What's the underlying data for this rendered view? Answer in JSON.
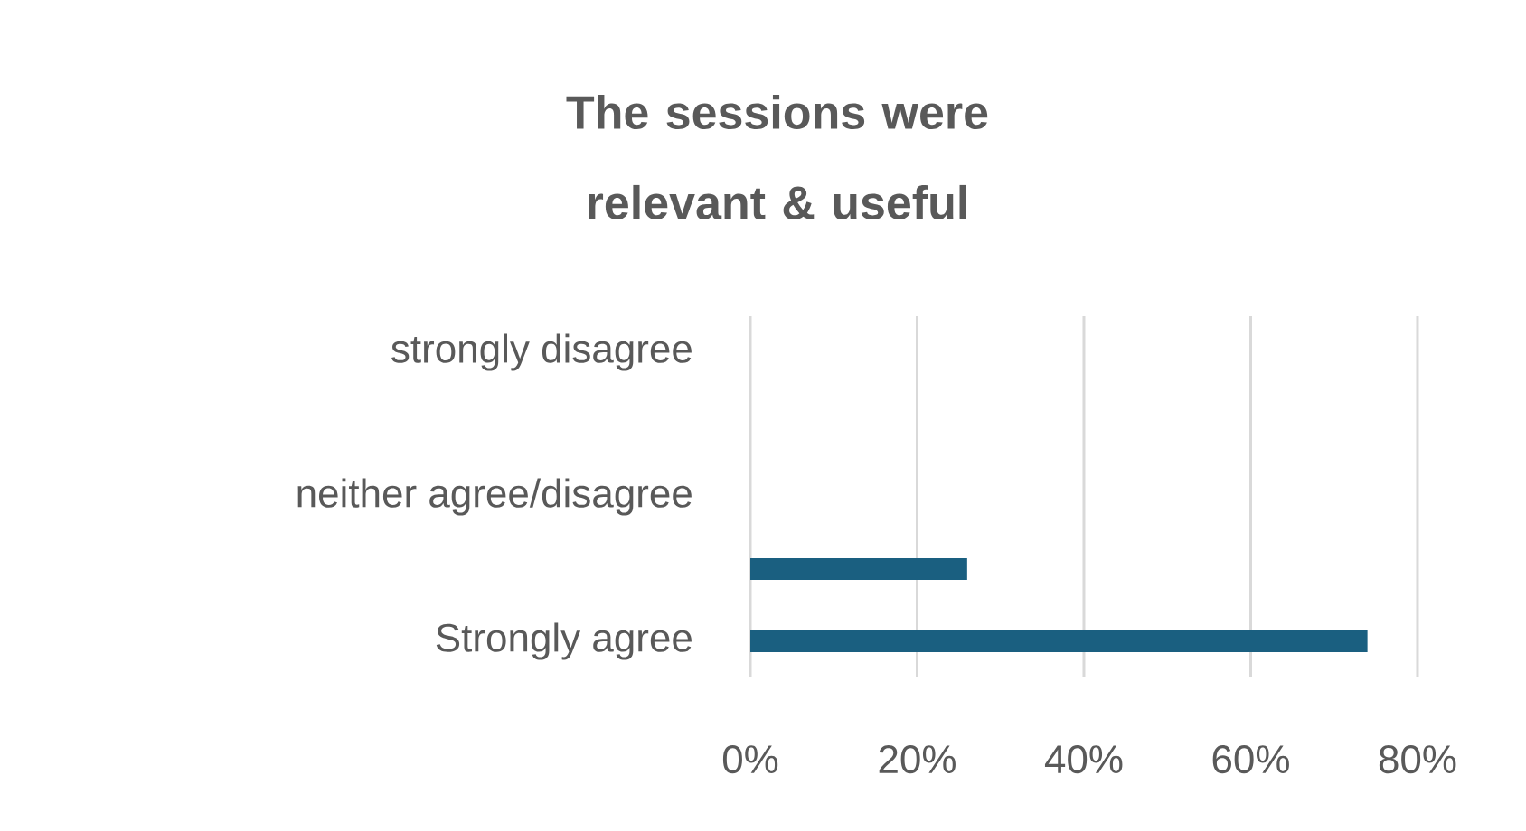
{
  "chart_data": {
    "type": "bar",
    "orientation": "horizontal",
    "title": "The sessions were relevant & useful",
    "categories": [
      "strongly disagree",
      null,
      "neither agree/disagree",
      null,
      "Strongly agree"
    ],
    "values": [
      0,
      0,
      0,
      26,
      74
    ],
    "color": "#1a5f80",
    "xlim": [
      0,
      80
    ],
    "xticks": [
      {
        "value": 0,
        "label": "0%"
      },
      {
        "value": 20,
        "label": "20%"
      },
      {
        "value": 40,
        "label": "40%"
      },
      {
        "value": 60,
        "label": "60%"
      },
      {
        "value": 80,
        "label": "80%"
      }
    ],
    "grid": "x"
  }
}
